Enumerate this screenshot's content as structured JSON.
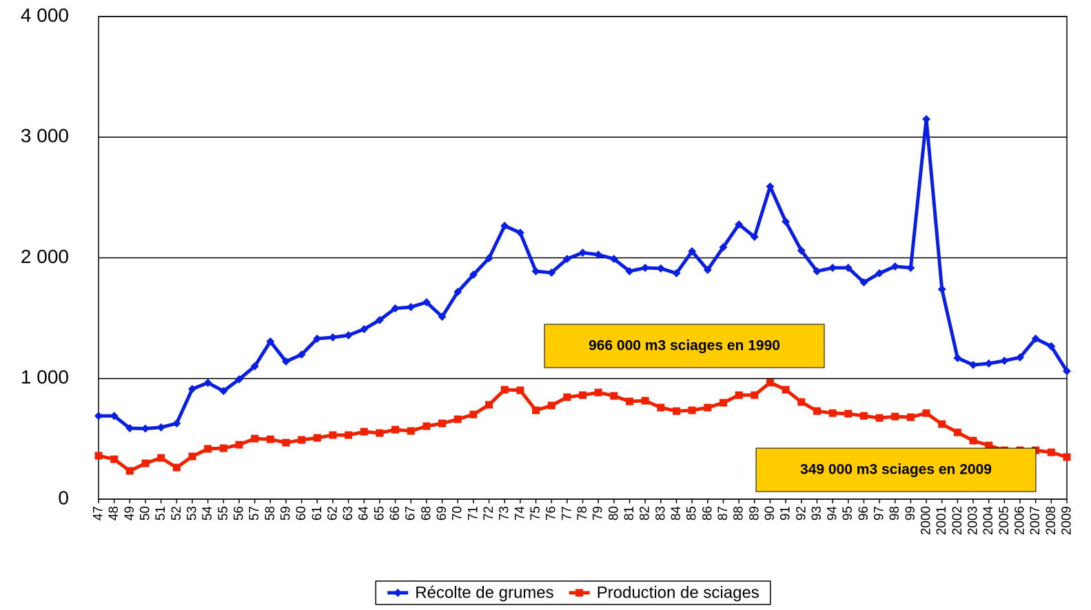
{
  "chart_data": {
    "type": "line",
    "categories": [
      "47",
      "48",
      "49",
      "50",
      "51",
      "52",
      "53",
      "54",
      "55",
      "56",
      "57",
      "58",
      "59",
      "60",
      "61",
      "62",
      "63",
      "64",
      "65",
      "66",
      "67",
      "68",
      "69",
      "70",
      "71",
      "72",
      "73",
      "74",
      "75",
      "76",
      "77",
      "78",
      "79",
      "80",
      "81",
      "82",
      "83",
      "84",
      "85",
      "86",
      "87",
      "88",
      "89",
      "90",
      "91",
      "92",
      "93",
      "94",
      "95",
      "96",
      "97",
      "98",
      "99",
      "2000",
      "2001",
      "2002",
      "2003",
      "2004",
      "2005",
      "2006",
      "2007",
      "2008",
      "2009"
    ],
    "series": [
      {
        "name": "Récolte de grumes",
        "color": "#0a1fe0",
        "marker": "diamond",
        "values": [
          690,
          690,
          588,
          585,
          595,
          628,
          913,
          964,
          896,
          993,
          1101,
          1307,
          1141,
          1198,
          1330,
          1341,
          1358,
          1409,
          1484,
          1581,
          1592,
          1632,
          1512,
          1718,
          1860,
          1997,
          2265,
          2208,
          1889,
          1877,
          1991,
          2043,
          2026,
          1991,
          1889,
          1917,
          1912,
          1872,
          2054,
          1900,
          2088,
          2277,
          2174,
          2591,
          2300,
          2060,
          1889,
          1917,
          1917,
          1797,
          1872,
          1929,
          1917,
          3150,
          1740,
          1170,
          1113,
          1124,
          1147,
          1175,
          1330,
          1267,
          1061
        ]
      },
      {
        "name": "Production de sciages",
        "color": "#ee2200",
        "marker": "square",
        "values": [
          360,
          331,
          234,
          297,
          342,
          262,
          354,
          417,
          422,
          451,
          502,
          496,
          468,
          491,
          508,
          531,
          531,
          559,
          548,
          576,
          565,
          605,
          628,
          662,
          702,
          782,
          907,
          902,
          736,
          776,
          845,
          862,
          884,
          856,
          810,
          816,
          759,
          730,
          736,
          759,
          799,
          862,
          862,
          966,
          907,
          805,
          730,
          713,
          708,
          690,
          673,
          685,
          679,
          713,
          622,
          553,
          485,
          445,
          405,
          405,
          405,
          388,
          349
        ]
      }
    ],
    "ylim": [
      0,
      4000
    ],
    "yticks": [
      0,
      {
        "value": 1000,
        "label": "1 000"
      },
      {
        "value": 2000,
        "label": "2 000"
      },
      {
        "value": 3000,
        "label": "3 000"
      },
      {
        "value": 4000,
        "label": "4 000"
      }
    ],
    "grid": true,
    "annotations": [
      {
        "text": "966 000 m3 sciages en 1990",
        "category": "90",
        "value": 966
      },
      {
        "text": "349 000 m3 sciages en 2009",
        "category": "2009",
        "value": 349
      }
    ],
    "annotation_color": "#ffcc00",
    "legend": "bottom"
  }
}
